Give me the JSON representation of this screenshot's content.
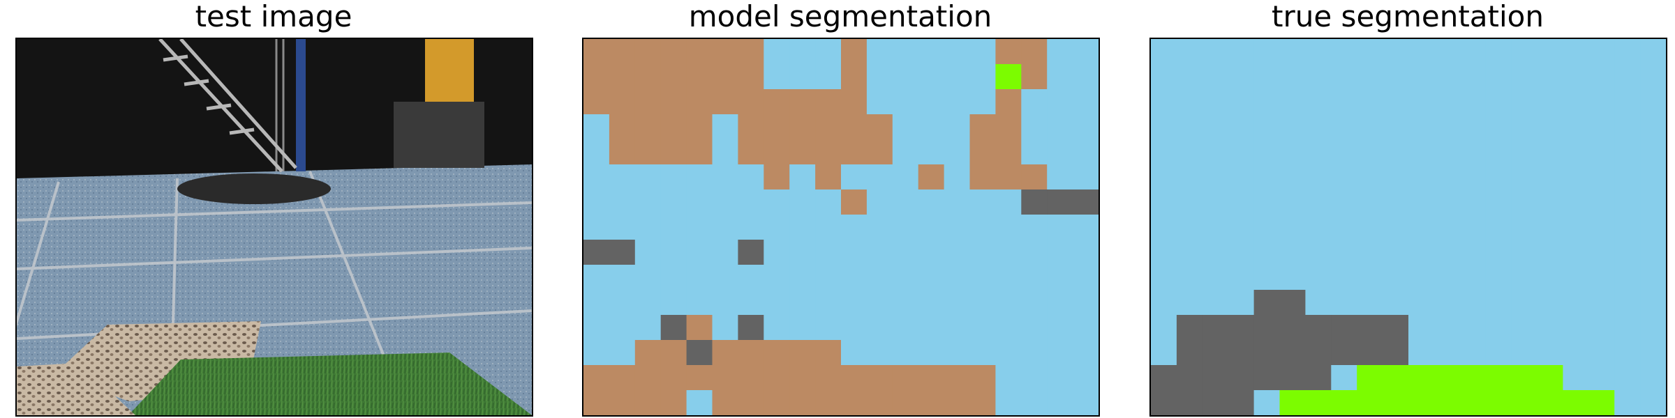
{
  "titles": {
    "test_image": "test image",
    "model_segmentation": "model segmentation",
    "true_segmentation": "true segmentation"
  },
  "class_colors": {
    "sky_blue": "#87ceeb",
    "tan": "#bc8a63",
    "gray": "#636363",
    "lime": "#7cfc00"
  },
  "model_segmentation_grid": [
    "TTTTTTTBBBTBBBBBTTBB",
    "TTTTTTTBBBTBBBBBLTBB",
    "TTTTTTTTTTTBBBBBTBBB",
    "BTTTTBTTTTTTBBBTTBBB",
    "BTTTTBTTTTTTBBBTTBBB",
    "BBBBBBBTBTBBBTBTTTBB",
    "BBBBBBBBBBTBBBBBBGGG",
    "BBBBBBBBBBBBBBBBBBBB",
    "GGBBBBGBBBBBBBBBBBBB",
    "BBBBBBBBBBBBBBBBBBBB",
    "BBBBBBBBBBBBBBBBBBBB",
    "BBBGTBGBBBBBBBBBBBBB",
    "BBTTGTTTTTBBBBBBBBBB",
    "TTTTTTTTTTTTTTTTBBBB",
    "TTTTBTTTTTTTTTTTBBBB"
  ],
  "true_segmentation_grid": [
    "BBBBBBBBBBBBBBBBBBBB",
    "BBBBBBBBBBBBBBBBBBBB",
    "BBBBBBBBBBBBBBBBBBBB",
    "BBBBBBBBBBBBBBBBBBBB",
    "BBBBBBBBBBBBBBBBBBBB",
    "BBBBBBBBBBBBBBBBBBBB",
    "BBBBBBBBBBBBBBBBBBBB",
    "BBBBBBBBBBBBBBBBBBBB",
    "BBBBBBBBBBBBBBBBBBBB",
    "BBBBBBBBBBBBBBBBBBBB",
    "BBBBGGBBBBBBBBBBBBBB",
    "BGGGGGGGGGBBBBBBBBBB",
    "BGGGGGGGGGBBBBBBBBBB",
    "GGGGGGGBLLLLLLLLBBBB",
    "GGGGBLLLLLLLLLLLLLBB"
  ]
}
